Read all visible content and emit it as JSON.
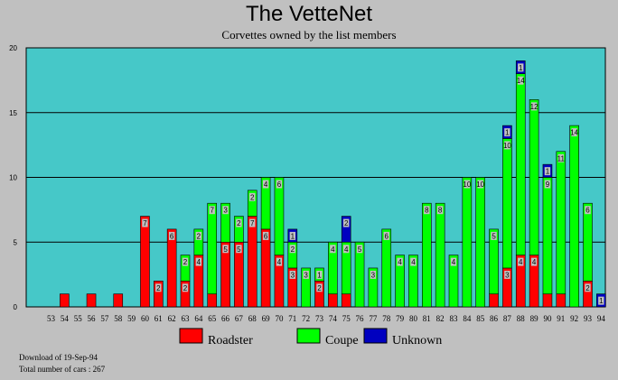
{
  "chart_data": {
    "type": "bar",
    "stacked": true,
    "title": "The VetteNet",
    "subtitle": "Corvettes owned by the list members",
    "ylim": [
      0,
      20
    ],
    "yticks": [
      0,
      5,
      10,
      15,
      20
    ],
    "grid": true,
    "categories": [
      "53",
      "54",
      "55",
      "56",
      "57",
      "58",
      "59",
      "60",
      "61",
      "62",
      "63",
      "64",
      "65",
      "66",
      "67",
      "68",
      "69",
      "70",
      "71",
      "72",
      "73",
      "74",
      "75",
      "76",
      "77",
      "78",
      "79",
      "80",
      "81",
      "82",
      "83",
      "84",
      "85",
      "86",
      "87",
      "88",
      "89",
      "90",
      "91",
      "92",
      "93",
      "94"
    ],
    "series": [
      {
        "name": "Roadster",
        "color": "#ff0000",
        "values": [
          0,
          1,
          0,
          1,
          0,
          1,
          0,
          7,
          2,
          6,
          2,
          4,
          1,
          5,
          5,
          7,
          6,
          4,
          3,
          0,
          2,
          1,
          1,
          0,
          0,
          0,
          0,
          0,
          0,
          0,
          0,
          0,
          0,
          1,
          3,
          4,
          4,
          1,
          1,
          0,
          2,
          0
        ]
      },
      {
        "name": "Coupe",
        "color": "#00ff00",
        "values": [
          0,
          0,
          0,
          0,
          0,
          0,
          0,
          0,
          0,
          0,
          2,
          2,
          7,
          3,
          2,
          2,
          4,
          6,
          2,
          3,
          1,
          4,
          4,
          5,
          3,
          6,
          4,
          4,
          8,
          8,
          4,
          10,
          10,
          5,
          10,
          14,
          12,
          9,
          11,
          14,
          6,
          0
        ]
      },
      {
        "name": "Unknown",
        "color": "#0000c0",
        "values": [
          0,
          0,
          0,
          0,
          0,
          0,
          0,
          0,
          0,
          0,
          0,
          0,
          0,
          0,
          0,
          0,
          0,
          0,
          1,
          0,
          0,
          0,
          2,
          0,
          0,
          0,
          0,
          0,
          0,
          0,
          0,
          0,
          0,
          0,
          1,
          1,
          0,
          1,
          0,
          0,
          0,
          1
        ]
      }
    ],
    "legend_position": "bottom"
  },
  "notes": {
    "download": "Download of 19-Sep-94",
    "total": "Total number of cars : 267"
  }
}
